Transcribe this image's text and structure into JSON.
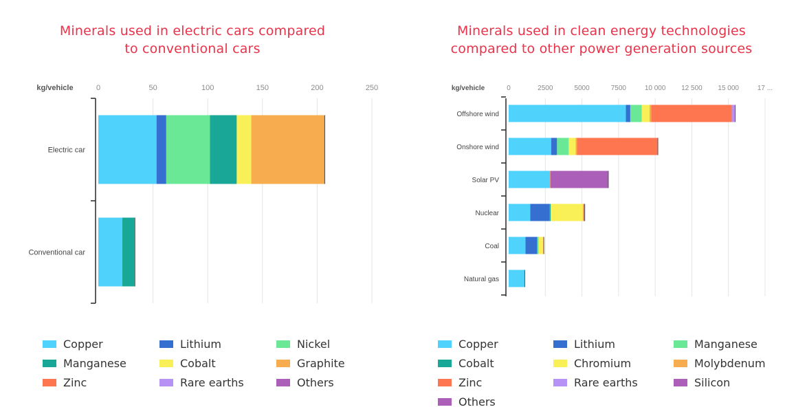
{
  "left_title_lines": [
    "Minerals used in electric cars compared",
    "to conventional cars"
  ],
  "right_title_lines": [
    "Minerals used in clean energy technologies",
    "compared to other power generation sources"
  ],
  "colors": {
    "Copper": "#4fd2fb",
    "Lithium": "#356fd0",
    "Nickel": "#6ae896",
    "Manganese_left": "#19a797",
    "Manganese_right": "#6ae896",
    "Cobalt_left": "#f9ef57",
    "Cobalt_right": "#19a797",
    "Chromium": "#f9ef57",
    "Graphite": "#f7ad4f",
    "Molybdenum": "#f7ad4f",
    "Zinc": "#fd7650",
    "Rare earths": "#b692f4",
    "Silicon": "#ab5fb8",
    "Others": "#ab5fb8"
  },
  "chart_data": [
    {
      "type": "bar",
      "orientation": "horizontal",
      "stacked": true,
      "title": "Minerals used in electric cars compared to conventional cars",
      "unit_label": "kg/vehicle",
      "xlim": [
        0,
        250
      ],
      "ticks": [
        "0",
        "50",
        "100",
        "150",
        "200",
        "250"
      ],
      "grid": true,
      "legend_position": "bottom",
      "categories": [
        "Electric car",
        "Conventional car"
      ],
      "series": [
        {
          "name": "Copper",
          "color_key": "Copper",
          "values": [
            53.2,
            22
          ]
        },
        {
          "name": "Lithium",
          "color_key": "Lithium",
          "values": [
            8.9,
            0
          ]
        },
        {
          "name": "Nickel",
          "color_key": "Nickel",
          "values": [
            39.9,
            0
          ]
        },
        {
          "name": "Manganese",
          "color_key": "Manganese_left",
          "values": [
            24.5,
            11.2
          ]
        },
        {
          "name": "Cobalt",
          "color_key": "Cobalt_left",
          "values": [
            13.3,
            0
          ]
        },
        {
          "name": "Graphite",
          "color_key": "Graphite",
          "values": [
            66.3,
            0
          ]
        },
        {
          "name": "Zinc",
          "color_key": "Zinc",
          "values": [
            0.1,
            0
          ]
        },
        {
          "name": "Rare earths",
          "color_key": "Rare earths",
          "values": [
            0.5,
            0
          ]
        },
        {
          "name": "Others",
          "color_key": "Others",
          "values": [
            0.3,
            0.3
          ]
        }
      ],
      "legend": [
        "Copper",
        "Lithium",
        "Nickel",
        "Manganese",
        "Cobalt",
        "Graphite",
        "Zinc",
        "Rare earths",
        "Others"
      ]
    },
    {
      "type": "bar",
      "orientation": "horizontal",
      "stacked": true,
      "title": "Minerals used in clean energy technologies compared to other power generation sources",
      "unit_label": "kg/vehicle",
      "xlim": [
        0,
        17500
      ],
      "ticks": [
        "0",
        "2500",
        "5000",
        "7500",
        "10 000",
        "12 500",
        "15 000",
        "17 ..."
      ],
      "grid": true,
      "legend_position": "bottom",
      "categories": [
        "Offshore wind",
        "Onshore wind",
        "Solar PV",
        "Nuclear",
        "Coal",
        "Natural gas"
      ],
      "series": [
        {
          "name": "Copper",
          "color_key": "Copper",
          "values": [
            8000,
            2900,
            2822,
            1473,
            1150,
            1100
          ]
        },
        {
          "name": "Lithium",
          "color_key": "Lithium",
          "values": [
            300,
            400,
            0,
            1300,
            800,
            0
          ]
        },
        {
          "name": "Manganese",
          "color_key": "Manganese_right",
          "values": [
            790,
            800,
            0,
            0,
            100,
            0
          ]
        },
        {
          "name": "Cobalt",
          "color_key": "Cobalt_right",
          "values": [
            0,
            0,
            0,
            100,
            0,
            0
          ]
        },
        {
          "name": "Chromium",
          "color_key": "Chromium",
          "values": [
            525,
            470,
            0,
            2190,
            300,
            0
          ]
        },
        {
          "name": "Molybdenum",
          "color_key": "Molybdenum",
          "values": [
            109,
            99,
            0,
            70,
            50,
            0
          ]
        },
        {
          "name": "Zinc",
          "color_key": "Zinc",
          "values": [
            5500,
            5500,
            30,
            0,
            0,
            0
          ]
        },
        {
          "name": "Rare earths",
          "color_key": "Rare earths",
          "values": [
            239,
            14,
            0,
            0,
            0,
            0
          ]
        },
        {
          "name": "Silicon",
          "color_key": "Silicon",
          "values": [
            0,
            0,
            3950,
            0,
            0,
            0
          ]
        },
        {
          "name": "Others",
          "color_key": "Others",
          "values": [
            0,
            0,
            0,
            60,
            0,
            0
          ]
        }
      ],
      "legend": [
        "Copper",
        "Lithium",
        "Manganese",
        "Cobalt",
        "Chromium",
        "Molybdenum",
        "Zinc",
        "Rare earths",
        "Silicon",
        "Others"
      ]
    }
  ]
}
